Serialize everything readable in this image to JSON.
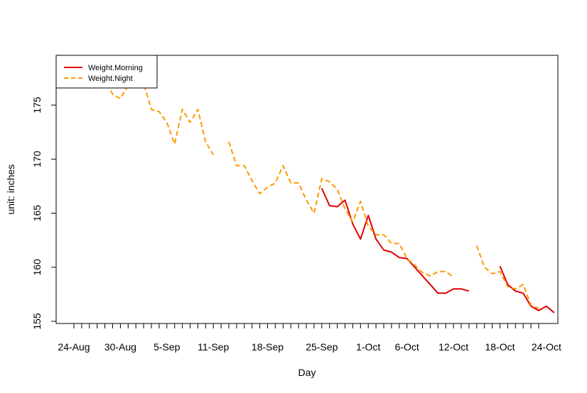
{
  "chart_data": {
    "type": "line",
    "xlabel": "Day",
    "ylabel": "unit: inches",
    "x_tick_labels": [
      "24-Aug",
      "30-Aug",
      "5-Sep",
      "11-Sep",
      "18-Sep",
      "25-Sep",
      "1-Oct",
      "6-Oct",
      "12-Oct",
      "18-Oct",
      "24-Oct"
    ],
    "x_tick_days": [
      0,
      6,
      12,
      18,
      25,
      32,
      38,
      43,
      49,
      55,
      61
    ],
    "x_start_label": "24-Aug",
    "xlim_days": [
      -2,
      63
    ],
    "y_ticks": [
      155,
      160,
      165,
      170,
      175
    ],
    "ylim": [
      154.8,
      179.6
    ],
    "grid": false,
    "legend_position": "top-left",
    "series": [
      {
        "name": "Weight.Morning",
        "color": "#e00000",
        "style": "solid",
        "points": [
          [
            32,
            167.3
          ],
          [
            33,
            165.7
          ],
          [
            34,
            165.6
          ],
          [
            35,
            166.2
          ],
          [
            36,
            164.0
          ],
          [
            37,
            162.6
          ],
          [
            38,
            164.8
          ],
          [
            39,
            162.6
          ],
          [
            40,
            161.6
          ],
          [
            41,
            161.4
          ],
          [
            42,
            160.9
          ],
          [
            43,
            160.8
          ],
          [
            44,
            160.0
          ],
          [
            45,
            159.2
          ],
          [
            46,
            158.4
          ],
          [
            47,
            157.6
          ],
          [
            48,
            157.6
          ],
          [
            49,
            158.0
          ],
          [
            50,
            158.0
          ],
          [
            51,
            157.8
          ],
          [
            55,
            160.1
          ],
          [
            56,
            158.4
          ],
          [
            57,
            157.8
          ],
          [
            58,
            157.6
          ],
          [
            59,
            156.4
          ],
          [
            60,
            156.0
          ],
          [
            61,
            156.4
          ],
          [
            62,
            155.8
          ]
        ]
      },
      {
        "name": "Weight.Night",
        "color": "#ff9900",
        "style": "dashed",
        "points": [
          [
            0,
            179.0
          ],
          [
            1,
            177.1
          ],
          [
            2,
            176.6
          ],
          [
            3,
            176.8
          ],
          [
            4,
            177.4
          ],
          [
            5,
            176.0
          ],
          [
            6,
            175.6
          ],
          [
            7,
            176.8
          ],
          [
            8,
            176.6
          ],
          [
            9,
            177.0
          ],
          [
            10,
            174.6
          ],
          [
            11,
            174.4
          ],
          [
            12,
            173.4
          ],
          [
            13,
            171.4
          ],
          [
            14,
            174.6
          ],
          [
            15,
            173.4
          ],
          [
            16,
            174.6
          ],
          [
            17,
            171.6
          ],
          [
            18,
            170.4
          ],
          [
            20,
            171.6
          ],
          [
            21,
            169.4
          ],
          [
            22,
            169.4
          ],
          [
            23,
            168.0
          ],
          [
            24,
            166.8
          ],
          [
            25,
            167.4
          ],
          [
            26,
            167.8
          ],
          [
            27,
            169.4
          ],
          [
            28,
            167.8
          ],
          [
            29,
            167.8
          ],
          [
            30,
            166.2
          ],
          [
            31,
            165.0
          ],
          [
            32,
            168.2
          ],
          [
            33,
            167.9
          ],
          [
            34,
            167.2
          ],
          [
            35,
            165.4
          ],
          [
            36,
            164.2
          ],
          [
            37,
            166.1
          ],
          [
            38,
            163.8
          ],
          [
            39,
            163.0
          ],
          [
            40,
            163.0
          ],
          [
            41,
            162.2
          ],
          [
            42,
            162.2
          ],
          [
            43,
            160.8
          ],
          [
            44,
            160.2
          ],
          [
            45,
            159.5
          ],
          [
            46,
            159.2
          ],
          [
            47,
            159.6
          ],
          [
            48,
            159.6
          ],
          [
            49,
            159.1
          ],
          [
            52,
            162.0
          ],
          [
            53,
            160.0
          ],
          [
            54,
            159.4
          ],
          [
            55,
            159.6
          ],
          [
            56,
            158.2
          ],
          [
            57,
            158.0
          ],
          [
            58,
            158.4
          ],
          [
            59,
            156.5
          ],
          [
            60,
            156.2
          ]
        ]
      }
    ]
  }
}
